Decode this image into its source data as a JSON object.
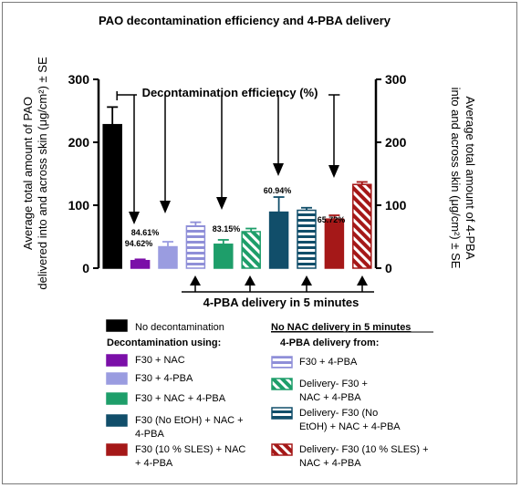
{
  "chart_data": {
    "type": "bar",
    "title": "PAO decontamination efficiency and 4-PBA delivery",
    "ylabel_left": [
      "Average total amount of PAO",
      "delivered into and across skin (μg/cm²) ± SE"
    ],
    "ylabel_right": [
      "Average total amount of 4-PBA",
      "into and across skin (μg/cm²) ± SE"
    ],
    "ylim": [
      0,
      300
    ],
    "yticks": [
      "0",
      "100",
      "200",
      "300"
    ],
    "bars": [
      {
        "series": "No decontamination",
        "value": 228,
        "error": 28,
        "color": "#000000",
        "pattern": "solid"
      },
      {
        "series": "F30 + NAC",
        "value": 12,
        "error": 2,
        "color": "#7b0fa8",
        "pattern": "solid"
      },
      {
        "series": "F30 + 4-PBA",
        "value": 34,
        "error": 8,
        "color": "#9a9ce0",
        "pattern": "solid"
      },
      {
        "series": "4-PBA from F30 + 4-PBA",
        "value": 67,
        "error": 6,
        "color": "#8f8fd8",
        "pattern": "hstripe"
      },
      {
        "series": "F30 + NAC + 4-PBA",
        "value": 38,
        "error": 7,
        "color": "#1e9e6a",
        "pattern": "solid"
      },
      {
        "series": "Delivery- F30 + NAC + 4-PBA",
        "value": 58,
        "error": 5,
        "color": "#1e9e6a",
        "pattern": "diag"
      },
      {
        "series": "F30 (No EtOH) + NAC + 4-PBA",
        "value": 89,
        "error": 24,
        "color": "#114e6a",
        "pattern": "solid"
      },
      {
        "series": "Delivery- F30 (No EtOH) + NAC + 4-PBA",
        "value": 92,
        "error": 4,
        "color": "#114e6a",
        "pattern": "hstripe"
      },
      {
        "series": "F30 (10 % SLES) + NAC + 4-PBA",
        "value": 78,
        "error": 6,
        "color": "#a51818",
        "pattern": "solid"
      },
      {
        "series": "Delivery- F30 (10 % SLES) + NAC + 4-PBA",
        "value": 133,
        "error": 4,
        "color": "#a51818",
        "pattern": "diag"
      }
    ],
    "efficiency_labels": [
      {
        "bar": 1,
        "text": "94.62%",
        "color": "#7b0fa8"
      },
      {
        "bar": 2,
        "text": "84.61%",
        "color": "#7b0fa8"
      },
      {
        "bar": 4,
        "text": "83.15%",
        "color": "#8a8a1e"
      },
      {
        "bar": 6,
        "text": "60.94%",
        "color": "#2a7aa0"
      },
      {
        "bar": 8,
        "text": "65.72%",
        "color": "#b01818"
      }
    ],
    "annotations": {
      "top": "Decontamination efficiency (%)",
      "bottom": "4-PBA delivery in 5 minutes"
    }
  },
  "legend": {
    "no_decon": "No decontamination",
    "decon_header": "Decontamination using:",
    "nac_header": "No NAC delivery in 5 minutes",
    "delivery_header": "4-PBA delivery from:",
    "left_items": [
      {
        "text": [
          "F30 + NAC"
        ],
        "color": "#7b0fa8",
        "pattern": "solid"
      },
      {
        "text": [
          "F30 + 4-PBA"
        ],
        "color": "#9a9ce0",
        "pattern": "solid"
      },
      {
        "text": [
          "F30 + NAC + 4-PBA"
        ],
        "color": "#1e9e6a",
        "pattern": "solid"
      },
      {
        "text": [
          "F30 (No EtOH) + NAC +",
          "4-PBA"
        ],
        "color": "#114e6a",
        "pattern": "solid"
      },
      {
        "text": [
          "F30 (10 % SLES) + NAC",
          "+ 4-PBA"
        ],
        "color": "#a51818",
        "pattern": "solid"
      }
    ],
    "right_items": [
      {
        "text": [
          "F30 + 4-PBA"
        ],
        "color": "#8f8fd8",
        "pattern": "hstripe"
      },
      {
        "text": [
          "Delivery- F30 +",
          "NAC + 4-PBA"
        ],
        "color": "#1e9e6a",
        "pattern": "diag"
      },
      {
        "text": [
          "Delivery- F30 (No",
          "EtOH) + NAC + 4-PBA"
        ],
        "color": "#114e6a",
        "pattern": "hstripe"
      },
      {
        "text": [
          "Delivery- F30 (10 % SLES) +",
          "NAC + 4-PBA"
        ],
        "color": "#a51818",
        "pattern": "diag"
      }
    ]
  }
}
